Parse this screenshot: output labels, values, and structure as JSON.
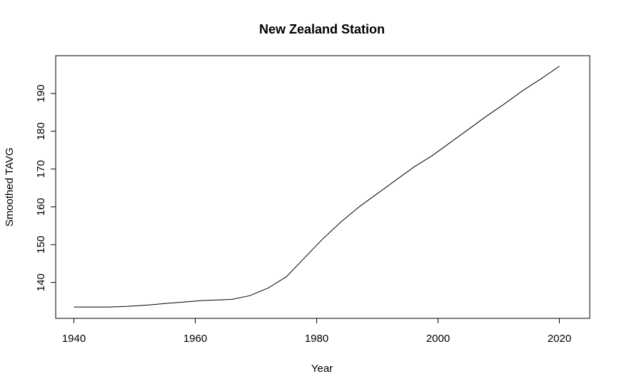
{
  "chart_data": {
    "type": "line",
    "title": "New Zealand Station",
    "xlabel": "Year",
    "ylabel": "Smoothed TAVG",
    "xlim": [
      1937,
      2025
    ],
    "ylim": [
      130.5,
      200
    ],
    "x_ticks": [
      1940,
      1960,
      1980,
      2000,
      2020
    ],
    "y_ticks": [
      140,
      150,
      160,
      170,
      180,
      190
    ],
    "grid": false,
    "line_color": "#000000",
    "series": [
      {
        "x": [
          1940,
          1943,
          1946,
          1949,
          1952,
          1955,
          1958,
          1961,
          1964,
          1966,
          1969,
          1972,
          1975,
          1978,
          1981,
          1984,
          1987,
          1990,
          1993,
          1996,
          1999,
          2002,
          2005,
          2008,
          2011,
          2014,
          2017,
          2020
        ],
        "y": [
          133.5,
          133.5,
          133.5,
          133.7,
          134.0,
          134.4,
          134.8,
          135.2,
          135.4,
          135.5,
          136.5,
          138.5,
          141.5,
          146.5,
          151.5,
          156.0,
          160.0,
          163.5,
          167.0,
          170.5,
          173.5,
          177.0,
          180.5,
          184.0,
          187.3,
          190.8,
          193.9,
          197.2
        ]
      }
    ]
  }
}
